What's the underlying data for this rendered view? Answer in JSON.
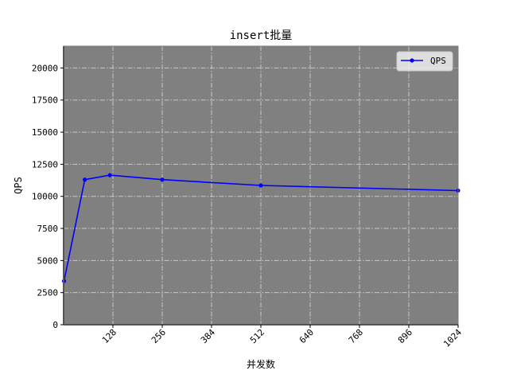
{
  "chart_data": {
    "type": "line",
    "title": "insert批量",
    "xlabel": "并发数",
    "ylabel": "QPS",
    "xlim": [
      0,
      1024
    ],
    "ylim": [
      0,
      21700
    ],
    "xticks": [
      128,
      256,
      384,
      512,
      640,
      768,
      896,
      1024
    ],
    "yticks": [
      0,
      2500,
      5000,
      7500,
      10000,
      12500,
      15000,
      17500,
      20000
    ],
    "x_tick_rotation": 45,
    "grid": true,
    "grid_style": "dash-dot",
    "background_color": "#808080",
    "legend_position": "top-right",
    "series": [
      {
        "name": "QPS",
        "color": "#0000ff",
        "marker": "circle",
        "x": [
          1,
          55,
          120,
          256,
          512,
          1024
        ],
        "y": [
          3400,
          11300,
          11650,
          11300,
          10850,
          10450
        ]
      }
    ]
  }
}
